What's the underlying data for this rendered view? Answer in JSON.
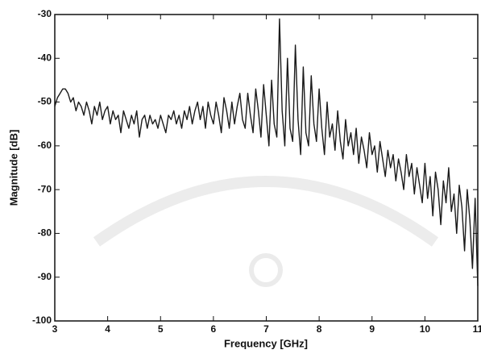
{
  "chart_data": {
    "type": "line",
    "x_label": "Frequency [GHz]",
    "y_label": "Magnitude [dB]",
    "x": [
      3,
      3.05,
      3.1,
      3.15,
      3.2,
      3.25,
      3.3,
      3.35,
      3.4,
      3.45,
      3.5,
      3.55,
      3.6,
      3.65,
      3.7,
      3.75,
      3.8,
      3.85,
      3.9,
      3.95,
      4,
      4.05,
      4.1,
      4.15,
      4.2,
      4.25,
      4.3,
      4.35,
      4.4,
      4.45,
      4.5,
      4.55,
      4.6,
      4.65,
      4.7,
      4.75,
      4.8,
      4.85,
      4.9,
      4.95,
      5,
      5.05,
      5.1,
      5.15,
      5.2,
      5.25,
      5.3,
      5.35,
      5.4,
      5.45,
      5.5,
      5.55,
      5.6,
      5.65,
      5.7,
      5.75,
      5.8,
      5.85,
      5.9,
      5.95,
      6,
      6.05,
      6.1,
      6.15,
      6.2,
      6.25,
      6.3,
      6.35,
      6.4,
      6.45,
      6.5,
      6.55,
      6.6,
      6.65,
      6.7,
      6.75,
      6.8,
      6.85,
      6.9,
      6.95,
      7,
      7.05,
      7.1,
      7.15,
      7.2,
      7.25,
      7.3,
      7.35,
      7.4,
      7.45,
      7.5,
      7.55,
      7.6,
      7.65,
      7.7,
      7.75,
      7.8,
      7.85,
      7.9,
      7.95,
      8,
      8.05,
      8.1,
      8.15,
      8.2,
      8.25,
      8.3,
      8.35,
      8.4,
      8.45,
      8.5,
      8.55,
      8.6,
      8.65,
      8.7,
      8.75,
      8.8,
      8.85,
      8.9,
      8.95,
      9,
      9.05,
      9.1,
      9.15,
      9.2,
      9.25,
      9.3,
      9.35,
      9.4,
      9.45,
      9.5,
      9.55,
      9.6,
      9.65,
      9.7,
      9.75,
      9.8,
      9.85,
      9.9,
      9.95,
      10,
      10.05,
      10.1,
      10.15,
      10.2,
      10.25,
      10.3,
      10.35,
      10.4,
      10.45,
      10.5,
      10.55,
      10.6,
      10.65,
      10.7,
      10.75,
      10.8,
      10.85,
      10.9,
      10.95,
      11
    ],
    "series": [
      {
        "color": "#1a1a1a",
        "values": [
          -51,
          -49,
          -48,
          -47,
          -47,
          -48,
          -50,
          -49,
          -52,
          -50,
          -51,
          -53,
          -50,
          -52,
          -55,
          -51,
          -53,
          -50,
          -54,
          -52,
          -51,
          -55,
          -52,
          -54,
          -53,
          -57,
          -52,
          -54,
          -56,
          -53,
          -55,
          -52,
          -58,
          -54,
          -53,
          -56,
          -53,
          -55,
          -54,
          -56,
          -53,
          -55,
          -57,
          -53,
          -54,
          -52,
          -55,
          -53,
          -56,
          -52,
          -54,
          -51,
          -55,
          -52,
          -50,
          -54,
          -51,
          -56,
          -50,
          -53,
          -55,
          -50,
          -53,
          -57,
          -49,
          -52,
          -56,
          -50,
          -55,
          -51,
          -48,
          -54,
          -56,
          -48,
          -53,
          -57,
          -47,
          -52,
          -58,
          -46,
          -53,
          -60,
          -45,
          -55,
          -58,
          -31,
          -52,
          -60,
          -40,
          -56,
          -59,
          -37,
          -54,
          -62,
          -42,
          -57,
          -60,
          -44,
          -55,
          -59,
          -47,
          -56,
          -62,
          -50,
          -58,
          -55,
          -61,
          -52,
          -59,
          -63,
          -54,
          -60,
          -57,
          -62,
          -56,
          -64,
          -58,
          -61,
          -65,
          -57,
          -62,
          -60,
          -66,
          -59,
          -63,
          -67,
          -61,
          -65,
          -62,
          -68,
          -63,
          -66,
          -70,
          -62,
          -67,
          -64,
          -71,
          -65,
          -69,
          -73,
          -64,
          -72,
          -67,
          -76,
          -66,
          -70,
          -78,
          -68,
          -73,
          -65,
          -75,
          -71,
          -80,
          -69,
          -74,
          -84,
          -70,
          -77,
          -88,
          -72,
          -92
        ]
      }
    ],
    "xlim": [
      3,
      11
    ],
    "ylim": [
      -100,
      -30
    ],
    "xticks": [
      3,
      4,
      5,
      6,
      7,
      8,
      9,
      10,
      11
    ],
    "yticks": [
      -100,
      -90,
      -80,
      -70,
      -60,
      -50,
      -40,
      -30
    ]
  }
}
